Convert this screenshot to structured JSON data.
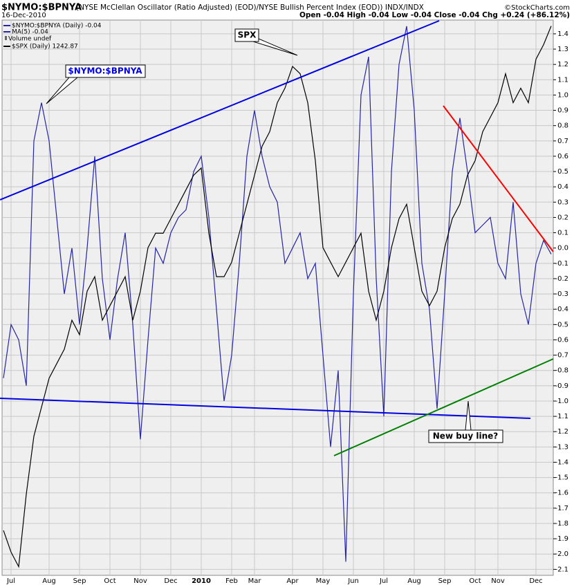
{
  "header": {
    "credit": "©StockCharts.com",
    "date": "16-Dec-2010",
    "quote": "Open -0.04 High -0.04 Low -0.04 Close -0.04 Chg +0.24 (+86.12%)"
  },
  "chart_data": {
    "type": "line",
    "title": "$NYMO:$BPNYA",
    "subtitle": "(NYSE McClellan Oscillator (Ratio Adjusted) (EOD)/NYSE Bullish Percent Index (EOD)) INDX/INDX",
    "legend_notes": [
      "MA(5) -0.04",
      "Volume undef"
    ],
    "annotations": [
      "$NYMO:$BPNYA",
      "SPX",
      "New buy line?"
    ],
    "grid": true,
    "categories": [
      null,
      "Jul",
      null,
      null,
      null,
      null,
      "Aug",
      null,
      null,
      null,
      "Sep",
      null,
      null,
      null,
      "Oct",
      null,
      null,
      null,
      "Nov",
      null,
      null,
      null,
      "Dec",
      null,
      null,
      null,
      "2010",
      null,
      null,
      null,
      "Feb",
      null,
      null,
      "Mar",
      null,
      null,
      null,
      null,
      "Apr",
      null,
      null,
      null,
      "May",
      null,
      null,
      null,
      "Jun",
      null,
      null,
      null,
      "Jul",
      null,
      null,
      null,
      "Aug",
      null,
      null,
      null,
      "Sep",
      null,
      null,
      null,
      "Oct",
      null,
      null,
      "Nov",
      null,
      null,
      null,
      null,
      "Dec",
      null,
      null
    ],
    "ylim": [
      -2.13,
      1.49
    ],
    "yticks": [
      1.4,
      1.3,
      1.2,
      1.1,
      {
        "value": 1.0,
        "label": "1.0"
      },
      0.9,
      0.8,
      0.7,
      0.6,
      0.5,
      0.4,
      0.3,
      0.2,
      0.1,
      {
        "value": 0,
        "label": "0.0"
      },
      -0.1,
      -0.2,
      -0.3,
      -0.4,
      -0.5,
      -0.6,
      -0.7,
      -0.8,
      -0.9,
      {
        "value": -1.0,
        "label": "-1.0"
      },
      -1.1,
      -1.2,
      -1.3,
      -1.4,
      -1.5,
      -1.6,
      -1.7,
      -1.8,
      -1.9,
      {
        "value": -2.0,
        "label": "-2.0"
      },
      -2.1
    ],
    "y2lim": [
      865,
      1247
    ],
    "series": [
      {
        "name": "$NYMO:$BPNYA (Daily) -0.04",
        "color": "#2424a8",
        "values": [
          -0.85,
          -0.5,
          -0.6,
          -0.9,
          0.7,
          0.95,
          0.7,
          0.2,
          -0.3,
          0.0,
          -0.5,
          0.0,
          0.6,
          -0.2,
          -0.6,
          -0.2,
          0.1,
          -0.5,
          -1.25,
          -0.6,
          0.0,
          -0.1,
          0.1,
          0.2,
          0.25,
          0.5,
          0.6,
          0.2,
          -0.4,
          -1.0,
          -0.7,
          -0.1,
          0.6,
          0.9,
          0.6,
          0.4,
          0.3,
          -0.1,
          0.0,
          0.1,
          -0.2,
          -0.1,
          -0.7,
          -1.3,
          -0.8,
          -2.05,
          -0.3,
          1.0,
          1.25,
          -0.2,
          -1.1,
          0.5,
          1.2,
          1.45,
          0.9,
          -0.1,
          -0.4,
          -1.05,
          -0.3,
          0.5,
          0.85,
          0.5,
          0.1,
          0.15,
          0.2,
          -0.1,
          -0.2,
          0.3,
          -0.3,
          -0.5,
          -0.1,
          0.05,
          -0.04
        ]
      },
      {
        "name": "$SPX (Daily) 1242.87",
        "color": "#000000",
        "axis": "y2",
        "values": [
          895,
          880,
          870,
          920,
          960,
          980,
          1000,
          1010,
          1020,
          1040,
          1030,
          1060,
          1070,
          1040,
          1050,
          1060,
          1070,
          1040,
          1060,
          1090,
          1100,
          1100,
          1110,
          1120,
          1130,
          1140,
          1145,
          1100,
          1070,
          1070,
          1080,
          1100,
          1120,
          1140,
          1160,
          1170,
          1190,
          1200,
          1215,
          1210,
          1190,
          1150,
          1090,
          1080,
          1070,
          1080,
          1090,
          1100,
          1060,
          1040,
          1060,
          1090,
          1110,
          1120,
          1090,
          1060,
          1050,
          1060,
          1090,
          1110,
          1120,
          1140,
          1150,
          1170,
          1180,
          1190,
          1210,
          1190,
          1200,
          1190,
          1220,
          1230,
          1242.87
        ]
      }
    ]
  }
}
